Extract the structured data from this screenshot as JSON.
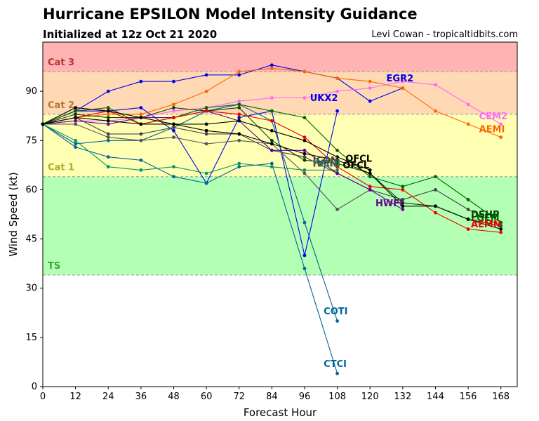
{
  "header": {
    "title": "Hurricane EPSILON Model Intensity Guidance",
    "subtitle": "Initialized at 12z Oct 21 2020",
    "credit": "Levi Cowan - tropicaltidbits.com"
  },
  "chart_data": {
    "type": "line",
    "xlabel": "Forecast Hour",
    "ylabel": "Wind Speed (kt)",
    "xlim": [
      0,
      174
    ],
    "ylim": [
      0,
      105
    ],
    "xticks": [
      0,
      12,
      24,
      36,
      48,
      60,
      72,
      84,
      96,
      108,
      120,
      132,
      144,
      156,
      168
    ],
    "xtick_labels": [
      "0",
      "12",
      "24",
      "36",
      "48",
      "60",
      "72",
      "84",
      "96",
      "108",
      "120",
      "132",
      "144",
      "156",
      "168"
    ],
    "yticks": [
      0,
      15,
      30,
      45,
      60,
      75,
      90
    ],
    "grid": false,
    "categories_bands": [
      {
        "label": "TS",
        "y0": 34,
        "y1": 64,
        "color": "#b3ffb3",
        "label_color": "#33aa33"
      },
      {
        "label": "Cat 1",
        "y0": 64,
        "y1": 83,
        "color": "#ffffb3",
        "label_color": "#aaaa33"
      },
      {
        "label": "Cat 2",
        "y0": 83,
        "y1": 96,
        "color": "#ffd9b3",
        "label_color": "#b37733"
      },
      {
        "label": "Cat 3",
        "y0": 96,
        "y1": 105,
        "color": "#ffb3b3",
        "label_color": "#b33333"
      }
    ],
    "series": [
      {
        "name": "EGR2",
        "color": "#0000ee",
        "x": [
          0,
          12,
          24,
          36,
          48,
          60,
          72,
          84,
          96,
          108,
          120,
          132
        ],
        "y": [
          80,
          84,
          90,
          93,
          93,
          95,
          95,
          98,
          96,
          94,
          87,
          91
        ],
        "label_x": 126,
        "label_y": 93
      },
      {
        "name": "UKX2",
        "color": "#0000ee",
        "x": [
          0,
          12,
          24,
          36,
          48,
          60,
          72,
          84,
          96,
          108
        ],
        "y": [
          80,
          84,
          84,
          85,
          78,
          62,
          82,
          84,
          40,
          84
        ],
        "label_x": 98,
        "label_y": 87
      },
      {
        "name": "AEMI",
        "color": "#ff6600",
        "x": [
          0,
          12,
          24,
          36,
          48,
          60,
          72,
          84,
          96,
          108,
          120,
          132,
          144,
          156,
          168
        ],
        "y": [
          80,
          82,
          83,
          83,
          86,
          90,
          96,
          97,
          96,
          94,
          93,
          91,
          84,
          80,
          76
        ],
        "label_x": 160,
        "label_y": 77.5
      },
      {
        "name": "CEM2",
        "color": "#ff66ff",
        "x": [
          0,
          12,
          24,
          36,
          48,
          60,
          72,
          84,
          96,
          108,
          120,
          132,
          144,
          156,
          168
        ],
        "y": [
          80,
          81,
          81,
          82,
          84,
          85,
          87,
          88,
          88,
          90,
          91,
          93,
          92,
          86,
          80
        ],
        "label_x": 160,
        "label_y": 81.5
      },
      {
        "name": "COTI",
        "color": "#006699",
        "x": [
          0,
          12,
          24,
          36,
          48,
          60,
          72,
          84,
          96,
          108
        ],
        "y": [
          80,
          74,
          75,
          75,
          79,
          84,
          86,
          81,
          50,
          20
        ],
        "label_x": 103,
        "label_y": 22
      },
      {
        "name": "CTCI",
        "color": "#006699",
        "x": [
          0,
          12,
          24,
          36,
          48,
          60,
          72,
          84,
          96,
          108
        ],
        "y": [
          80,
          73,
          70,
          69,
          64,
          62,
          67,
          68,
          36,
          4
        ],
        "label_x": 103,
        "label_y": 6
      },
      {
        "name": "HMNI",
        "color": "#009966",
        "x": [
          0,
          12,
          24,
          36,
          48,
          60,
          72,
          84,
          96,
          108
        ],
        "y": [
          80,
          75,
          67,
          66,
          67,
          65,
          68,
          67,
          66,
          66
        ],
        "label_x": 99,
        "label_y": 67
      },
      {
        "name": "LGEM",
        "color": "#006600",
        "x": [
          0,
          12,
          24,
          36,
          48,
          60,
          72,
          84,
          96,
          108,
          120,
          132,
          144,
          156,
          168
        ],
        "y": [
          80,
          84,
          85,
          80,
          82,
          85,
          86,
          84,
          82,
          72,
          64,
          61,
          64,
          57,
          50
        ],
        "label_x": 157,
        "label_y": 50.5
      },
      {
        "name": "DSHP",
        "color": "#004400",
        "x": [
          0,
          12,
          24,
          36,
          48,
          60,
          72,
          84,
          96,
          108,
          120,
          132,
          144,
          156,
          168
        ],
        "y": [
          80,
          83,
          82,
          82,
          85,
          84,
          85,
          75,
          69,
          68,
          65,
          56,
          55,
          51,
          49
        ],
        "label_x": 157,
        "label_y": 51.5
      },
      {
        "name": "ICON",
        "color": "#444444",
        "x": [
          0,
          12,
          24,
          36,
          48,
          60,
          72,
          84,
          96,
          108,
          120,
          132,
          144,
          156,
          168
        ],
        "y": [
          80,
          82,
          77,
          77,
          79,
          77,
          77,
          72,
          70,
          65,
          60,
          57,
          60,
          54,
          49
        ],
        "label_x": 99,
        "label_y": 68
      },
      {
        "name": "IVCN",
        "color": "#555555",
        "x": [
          0,
          12,
          24,
          36,
          48,
          60,
          72,
          84,
          96,
          108,
          120
        ],
        "y": [
          80,
          80,
          76,
          75,
          76,
          74,
          75,
          74,
          65,
          54,
          60
        ],
        "label_x": 99,
        "label_y": 67
      },
      {
        "name": "HWFI",
        "color": "#660099",
        "x": [
          0,
          12,
          24,
          36,
          48,
          60,
          72,
          84,
          96,
          108,
          120,
          132
        ],
        "y": [
          80,
          81,
          80,
          82,
          82,
          84,
          81,
          72,
          72,
          65,
          60,
          54
        ],
        "label_x": 122,
        "label_y": 55
      },
      {
        "name": "AEMN",
        "color": "#ee0000",
        "x": [
          0,
          12,
          24,
          36,
          48,
          60,
          72,
          84,
          96,
          108,
          120,
          132,
          144,
          156,
          168
        ],
        "y": [
          80,
          82,
          84,
          80,
          82,
          84,
          83,
          81,
          76,
          67,
          61,
          60,
          53,
          48,
          47
        ],
        "label_x": 157,
        "label_y": 48.5
      },
      {
        "name": "OFCL",
        "color": "#000000",
        "x": [
          0,
          12,
          24,
          36,
          48,
          60,
          72,
          84,
          96,
          108,
          120
        ],
        "y": [
          80,
          82,
          81,
          80,
          80,
          80,
          81,
          78,
          75,
          70,
          66
        ],
        "label_x": 111,
        "label_y": 68.5
      },
      {
        "name": "OFCL",
        "color": "#000000",
        "x": [
          0,
          12,
          24,
          36,
          48,
          60,
          72,
          84,
          96,
          108,
          120,
          132,
          144,
          156,
          168
        ],
        "y": [
          80,
          85,
          84,
          82,
          80,
          78,
          77,
          74,
          71,
          69,
          65,
          55,
          55,
          51,
          48
        ],
        "label_x": 110,
        "label_y": 66.5
      }
    ]
  }
}
